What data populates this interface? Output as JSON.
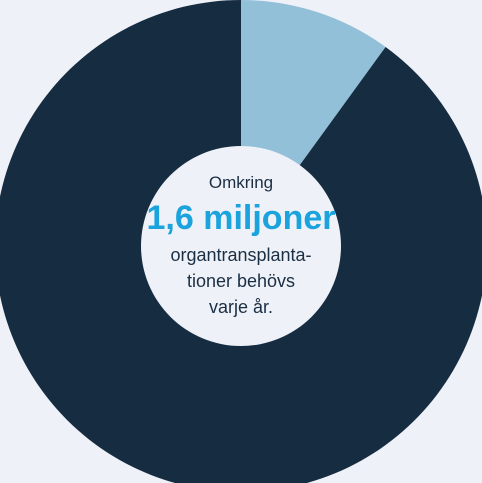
{
  "chart_data": {
    "type": "pie",
    "donut": true,
    "slices": [
      {
        "value": 10,
        "color": "#93c0d9"
      },
      {
        "value": 90,
        "color": "#162c41"
      }
    ],
    "center_color": "#eef1f7",
    "annotations": {
      "prefix": "Omkring",
      "headline": "1,6 miljoner",
      "lines": [
        "organtransplanta-",
        "tioner behövs",
        "varje år."
      ]
    },
    "colors": {
      "headline": "#1aa3dc",
      "text": "#1a2e44",
      "background": "#eef1f7"
    }
  }
}
